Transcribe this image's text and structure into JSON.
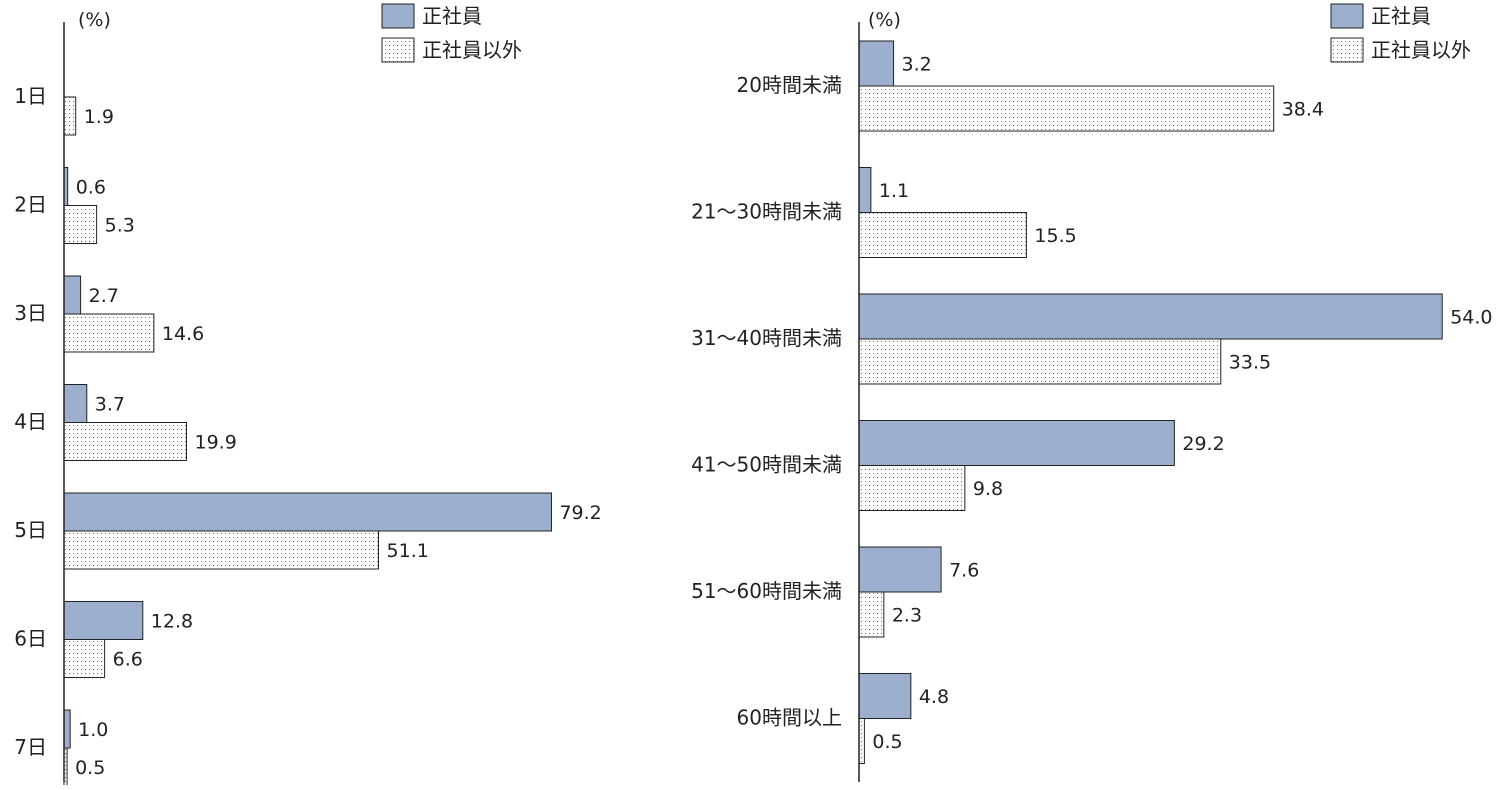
{
  "legend": {
    "series": [
      {
        "name": "正社員",
        "style": "solid"
      },
      {
        "name": "正社員以外",
        "style": "dotted"
      }
    ]
  },
  "colors": {
    "seishain_fill": "#9dafce",
    "other_fill": "#ffffff",
    "dot": "#666666",
    "stroke": "#222222"
  },
  "chart_data": [
    {
      "type": "bar",
      "orientation": "horizontal",
      "unit": "(%)",
      "categories": [
        "1日",
        "2日",
        "3日",
        "4日",
        "5日",
        "6日",
        "7日"
      ],
      "series": [
        {
          "name": "正社員",
          "values": [
            null,
            0.6,
            2.7,
            3.7,
            79.2,
            12.8,
            1.0
          ],
          "labels": [
            "",
            "0.6",
            "2.7",
            "3.7",
            "79.2",
            "12.8",
            "1.0"
          ]
        },
        {
          "name": "正社員以外",
          "values": [
            1.9,
            5.3,
            14.6,
            19.9,
            51.1,
            6.6,
            0.5
          ],
          "labels": [
            "1.9",
            "5.3",
            "14.6",
            "19.9",
            "51.1",
            "6.6",
            "0.5"
          ]
        }
      ],
      "xlim": [
        0,
        80
      ],
      "grid": false,
      "legend_position": "top-right"
    },
    {
      "type": "bar",
      "orientation": "horizontal",
      "unit": "(%)",
      "categories": [
        "20時間未満",
        "21～30時間未満",
        "31～40時間未満",
        "41～50時間未満",
        "51～60時間未満",
        "60時間以上"
      ],
      "series": [
        {
          "name": "正社員",
          "values": [
            3.2,
            1.1,
            54.0,
            29.2,
            7.6,
            4.8
          ],
          "labels": [
            "3.2",
            "1.1",
            "54.0",
            "29.2",
            "7.6",
            "4.8"
          ]
        },
        {
          "name": "正社員以外",
          "values": [
            38.4,
            15.5,
            33.5,
            9.8,
            2.3,
            0.5
          ],
          "labels": [
            "38.4",
            "15.5",
            "33.5",
            "9.8",
            "2.3",
            "0.5"
          ]
        }
      ],
      "xlim": [
        0,
        55
      ],
      "grid": false,
      "legend_position": "top-right"
    }
  ]
}
